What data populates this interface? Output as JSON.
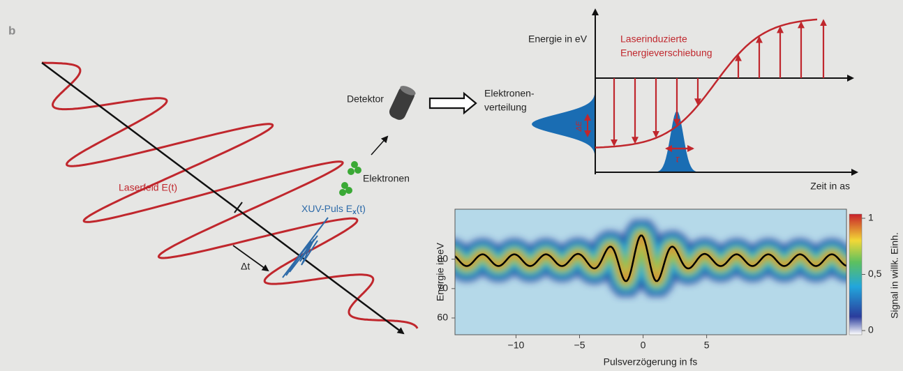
{
  "panel_label": "b",
  "left": {
    "laser_label": "Laserfeld E(t)",
    "delay_label": "Δt",
    "xuv_label": [
      "XUV-Puls E",
      "x",
      "(t)"
    ],
    "electrons_label": "Elektronen",
    "detector_label": "Detektor"
  },
  "top_right": {
    "distribution_label": [
      "Elektronen-",
      "verteilung"
    ],
    "energy_axis_label": "Energie in eV",
    "shift_label": [
      "Laserinduzierte",
      "Energieverschiebung"
    ],
    "delta_e_label": "ΔE",
    "tau_label": "τ",
    "time_axis_label": "Zeit in as"
  },
  "spectrogram": {
    "ylabel": "Energie in eV",
    "xlabel": "Pulsverzögerung in fs",
    "xlim": [
      -14.8,
      16
    ],
    "ylim": [
      54.3,
      97
    ],
    "xticks": [
      {
        "value": -10,
        "label": "−10"
      },
      {
        "value": -5,
        "label": "−5"
      },
      0,
      5
    ],
    "yticks": [
      60,
      70,
      80
    ],
    "colorbar_label": "Signal in willk. Einh.",
    "clim": [
      0,
      1
    ],
    "colorbar_ticks": [
      1,
      {
        "value": 0.5,
        "label": "0,5"
      },
      0
    ]
  }
}
